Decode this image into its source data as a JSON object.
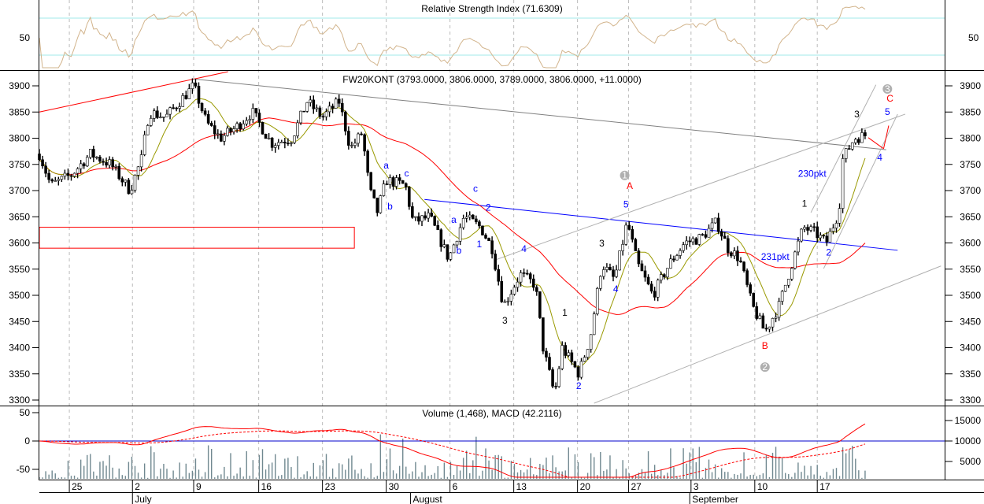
{
  "chart_data": {
    "type": "candlestick",
    "instrument_title": "FW20KONT (3793.0000, 3806.0000, 3789.0000, 3806.0000, +11.0000)",
    "rsi_panel": {
      "title": "Relative Strength Index (71.6309)",
      "value": 71.6309,
      "tick_labels": [
        "50",
        "50"
      ],
      "levels": [
        30,
        50,
        70
      ]
    },
    "price_axis": {
      "ylim": [
        3290,
        3925
      ],
      "ticks": [
        "3300",
        "3350",
        "3400",
        "3450",
        "3500",
        "3550",
        "3600",
        "3650",
        "3700",
        "3750",
        "3800",
        "3850",
        "3900"
      ]
    },
    "lower_panel": {
      "title": "Volume (1,468), MACD (42.2116)",
      "macd_ticks": [
        "50",
        "0",
        "-50"
      ],
      "volume_ticks": [
        "15000",
        "10000",
        "5000"
      ]
    },
    "x_axis": {
      "day_labels": [
        "25",
        "2",
        "9",
        "16",
        "23",
        "30",
        "6",
        "13",
        "20",
        "27",
        "3",
        "10",
        "17"
      ],
      "day_positions": [
        2.35,
        7.3,
        12.1,
        17.2,
        22.2,
        27.2,
        32.2,
        37.2,
        42.2,
        46.2,
        51.1,
        56.1,
        61.0
      ],
      "months": [
        "July",
        "August",
        "September"
      ],
      "month_positions": [
        7.3,
        29.1,
        51.0
      ]
    },
    "price_path": [
      [
        0,
        3770
      ],
      [
        0.9,
        3710
      ],
      [
        2.5,
        3730
      ],
      [
        4.0,
        3770
      ],
      [
        5.6,
        3750
      ],
      [
        7.1,
        3700
      ],
      [
        8.0,
        3760
      ],
      [
        8.6,
        3850
      ],
      [
        9.9,
        3840
      ],
      [
        12.1,
        3900
      ],
      [
        13.1,
        3830
      ],
      [
        14.2,
        3800
      ],
      [
        15.4,
        3820
      ],
      [
        16.7,
        3850
      ],
      [
        18.2,
        3790
      ],
      [
        19.8,
        3800
      ],
      [
        21.0,
        3870
      ],
      [
        22.2,
        3840
      ],
      [
        23.5,
        3870
      ],
      [
        24.4,
        3780
      ],
      [
        25.3,
        3810
      ],
      [
        25.9,
        3700
      ],
      [
        26.5,
        3660
      ],
      [
        27.2,
        3720
      ],
      [
        28.7,
        3710
      ],
      [
        29.3,
        3640
      ],
      [
        30.6,
        3650
      ],
      [
        32.1,
        3570
      ],
      [
        33.3,
        3650
      ],
      [
        34.6,
        3630
      ],
      [
        35.5,
        3590
      ],
      [
        36.4,
        3480
      ],
      [
        37.7,
        3540
      ],
      [
        38.9,
        3520
      ],
      [
        39.5,
        3400
      ],
      [
        40.4,
        3310
      ],
      [
        41.0,
        3400
      ],
      [
        42.3,
        3350
      ],
      [
        43.2,
        3420
      ],
      [
        44.1,
        3560
      ],
      [
        45.1,
        3530
      ],
      [
        46.1,
        3640
      ],
      [
        46.9,
        3560
      ],
      [
        48.1,
        3500
      ],
      [
        49.4,
        3560
      ],
      [
        50.6,
        3600
      ],
      [
        51.9,
        3610
      ],
      [
        53.1,
        3640
      ],
      [
        54.0,
        3590
      ],
      [
        54.9,
        3570
      ],
      [
        55.9,
        3480
      ],
      [
        56.9,
        3430
      ],
      [
        58.0,
        3480
      ],
      [
        59.0,
        3560
      ],
      [
        59.9,
        3630
      ],
      [
        60.8,
        3620
      ],
      [
        61.7,
        3600
      ],
      [
        62.7,
        3660
      ],
      [
        63.0,
        3760
      ],
      [
        63.9,
        3800
      ],
      [
        64.8,
        3806
      ]
    ],
    "support_zone": {
      "days": [
        0,
        24.7
      ],
      "prices": [
        3590,
        3630
      ]
    },
    "trendlines": [
      {
        "name": "red-resistance-line",
        "color": "#ff0000",
        "from": [
          0,
          3850
        ],
        "to": [
          14.8,
          3927
        ]
      },
      {
        "name": "gray-downtrend-line",
        "color": "#808080",
        "from": [
          12.1,
          3913
        ],
        "to": [
          66.4,
          3778
        ]
      },
      {
        "name": "blue-neckline",
        "color": "#0000ff",
        "from": [
          30.2,
          3683
        ],
        "to": [
          67.3,
          3586
        ]
      },
      {
        "name": "channel-lower-line",
        "color": "#b0b0b0",
        "from": [
          43.5,
          3294
        ],
        "to": [
          70.7,
          3556
        ]
      },
      {
        "name": "channel-upper-line",
        "color": "#b0b0b0",
        "from": [
          35.8,
          3568
        ],
        "to": [
          67.9,
          3846
        ]
      },
      {
        "name": "impulse-upper-line",
        "color": "#b0b0b0",
        "from": [
          60.5,
          3658
        ],
        "to": [
          65.6,
          3902
        ]
      },
      {
        "name": "impulse-lower-line",
        "color": "#b0b0b0",
        "from": [
          61.5,
          3551
        ],
        "to": [
          67.3,
          3846
        ]
      },
      {
        "name": "projection-wave-4",
        "color": "#ff0000",
        "from": [
          65.0,
          3801
        ],
        "to": [
          66.2,
          3780
        ]
      },
      {
        "name": "projection-wave-5",
        "color": "#ff0000",
        "from": [
          66.2,
          3780
        ],
        "to": [
          66.6,
          3824
        ]
      }
    ],
    "annotations": [
      {
        "text": "a",
        "color": "#0000ff",
        "day": 27.2,
        "price": 3742
      },
      {
        "text": "b",
        "color": "#0000ff",
        "day": 27.5,
        "price": 3664
      },
      {
        "text": "c",
        "color": "#0000ff",
        "day": 28.8,
        "price": 3727
      },
      {
        "text": "a",
        "color": "#0000ff",
        "day": 32.5,
        "price": 3638
      },
      {
        "text": "b",
        "color": "#0000ff",
        "day": 32.9,
        "price": 3580
      },
      {
        "text": "c",
        "color": "#0000ff",
        "day": 34.2,
        "price": 3698
      },
      {
        "text": "2",
        "color": "#0000ff",
        "day": 35.2,
        "price": 3662
      },
      {
        "text": "1",
        "color": "#0000ff",
        "day": 34.5,
        "price": 3592
      },
      {
        "text": "4",
        "color": "#0000ff",
        "day": 38.0,
        "price": 3583
      },
      {
        "text": "3",
        "color": "#000000",
        "day": 36.5,
        "price": 3446
      },
      {
        "text": "1",
        "color": "#000000",
        "day": 41.2,
        "price": 3461
      },
      {
        "text": "2",
        "color": "#0000ff",
        "day": 42.3,
        "price": 3321
      },
      {
        "text": "3",
        "color": "#000000",
        "day": 44.1,
        "price": 3593
      },
      {
        "text": "4",
        "color": "#0000ff",
        "day": 45.2,
        "price": 3506
      },
      {
        "text": "5",
        "color": "#0000ff",
        "day": 46.0,
        "price": 3668
      },
      {
        "text": "A",
        "color": "#ff0000",
        "day": 46.3,
        "price": 3703
      },
      {
        "text": "B",
        "color": "#ff0000",
        "day": 56.9,
        "price": 3398
      },
      {
        "text": "231pkt",
        "color": "#0000ff",
        "day": 57.7,
        "price": 3568
      },
      {
        "text": "230pkt",
        "color": "#0000ff",
        "day": 60.6,
        "price": 3726
      },
      {
        "text": "1",
        "color": "#000000",
        "day": 60.0,
        "price": 3669
      },
      {
        "text": "2",
        "color": "#0000ff",
        "day": 61.9,
        "price": 3576
      },
      {
        "text": "3",
        "color": "#000000",
        "day": 64.1,
        "price": 3840
      },
      {
        "text": "4",
        "color": "#0000ff",
        "day": 65.9,
        "price": 3757
      },
      {
        "text": "5",
        "color": "#0000ff",
        "day": 66.5,
        "price": 3844
      },
      {
        "text": "C",
        "color": "#ff0000",
        "day": 66.7,
        "price": 3870
      }
    ],
    "circled_labels": [
      {
        "text": "1",
        "day": 45.9,
        "price": 3729
      },
      {
        "text": "2",
        "day": 56.9,
        "price": 3363
      },
      {
        "text": "3",
        "day": 66.5,
        "price": 3894
      }
    ],
    "colors": {
      "candle": "#000000",
      "sma_short": "#999900",
      "sma_long": "#ff0000",
      "rsi": "#d2b48c",
      "rsi_levels": "#a0e8e8",
      "macd": "#ff0000",
      "volume": "#708890",
      "zero_line": "#0000cc"
    }
  }
}
